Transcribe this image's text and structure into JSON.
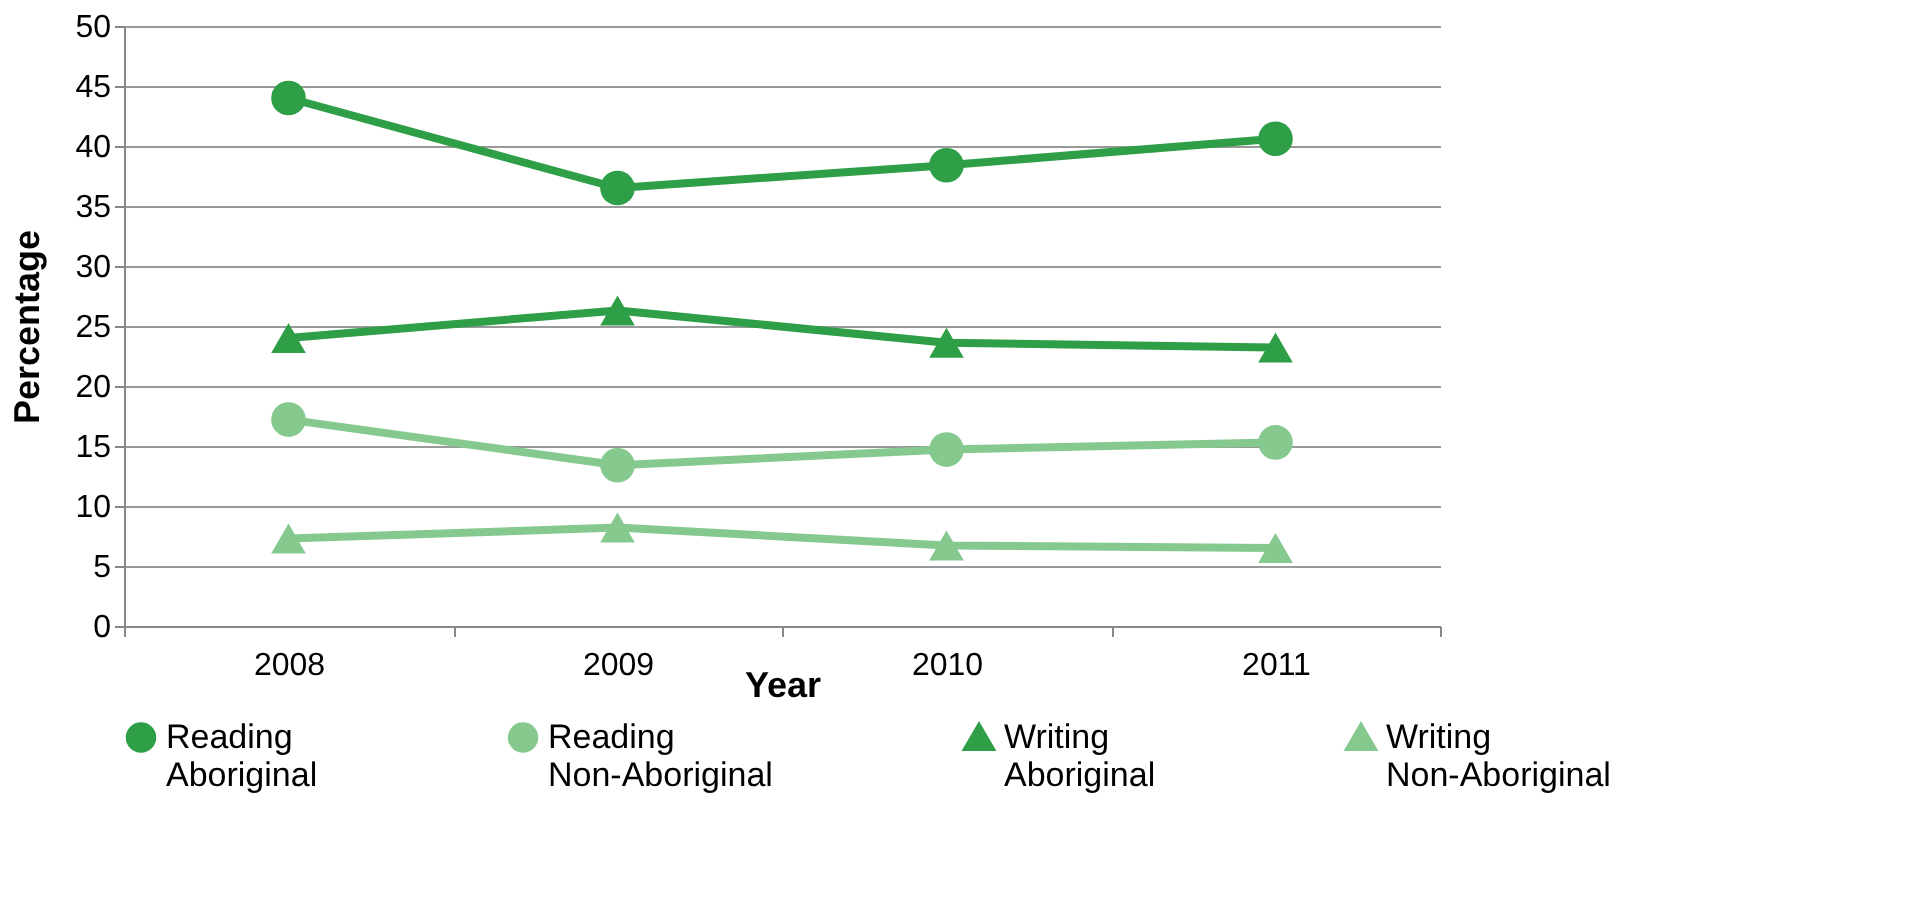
{
  "chart_data": {
    "type": "line",
    "xlabel": "Year",
    "ylabel": "Percentage",
    "categories": [
      "2008",
      "2009",
      "2010",
      "2011"
    ],
    "series": [
      {
        "name": "Reading Aboriginal",
        "color": "#2e9e47",
        "marker": "circle",
        "values": [
          44.0,
          36.5,
          38.4,
          40.6
        ]
      },
      {
        "name": "Reading Non-Aboriginal",
        "color": "#85c98f",
        "marker": "circle",
        "values": [
          17.2,
          13.4,
          14.7,
          15.3
        ]
      },
      {
        "name": "Writing Aboriginal",
        "color": "#2e9e47",
        "marker": "triangle",
        "values": [
          24.0,
          26.3,
          23.6,
          23.2
        ]
      },
      {
        "name": "Writing Non-Aboriginal",
        "color": "#85c98f",
        "marker": "triangle",
        "values": [
          7.3,
          8.2,
          6.7,
          6.5
        ]
      }
    ],
    "ylim": [
      0,
      50
    ],
    "yticks": [
      0,
      5,
      10,
      15,
      20,
      25,
      30,
      35,
      40,
      45,
      50
    ],
    "grid": "y",
    "legend": "bottom"
  }
}
